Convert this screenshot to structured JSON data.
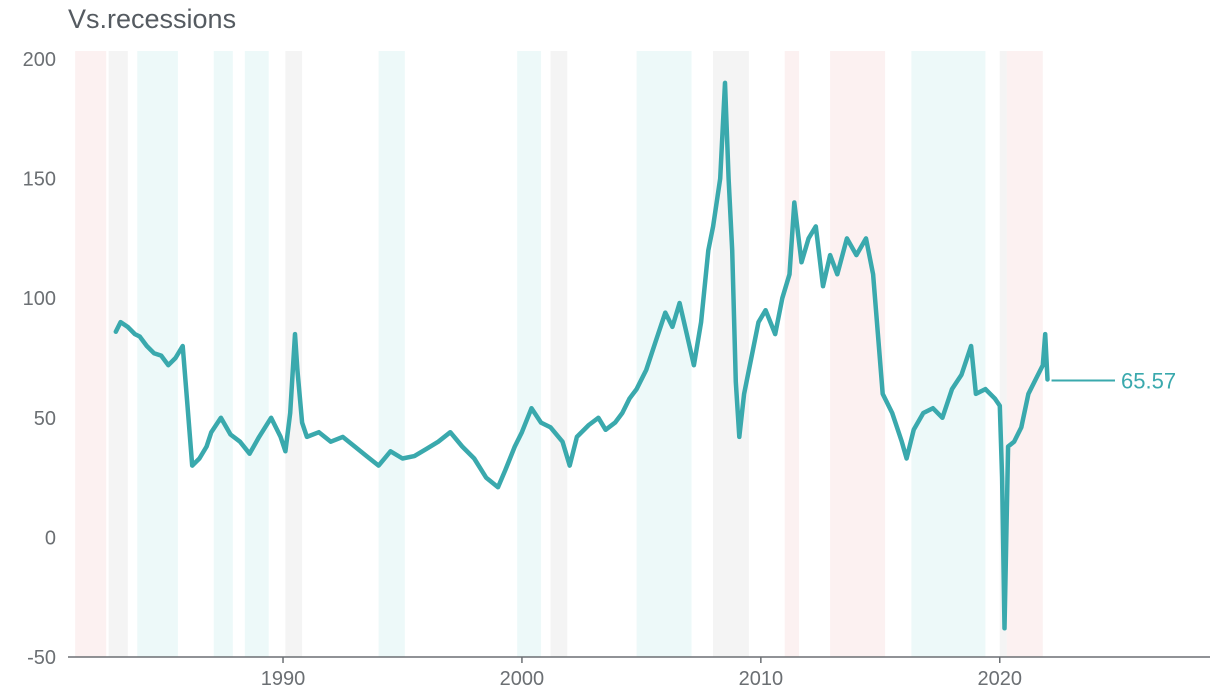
{
  "chart_data": {
    "type": "line",
    "title": "Vs.recessions",
    "xlabel": "",
    "ylabel": "",
    "xlim": [
      1981.0,
      2028.8
    ],
    "ylim": [
      -50,
      200
    ],
    "xticks": [
      1990,
      2000,
      2010,
      2020
    ],
    "yticks": [
      -50,
      0,
      50,
      100,
      150,
      200
    ],
    "grid": false,
    "line_color": "#3aa9ad",
    "end_value_label": "65.57",
    "series": [
      {
        "points": [
          [
            1983.0,
            86
          ],
          [
            1983.2,
            90
          ],
          [
            1983.5,
            88
          ],
          [
            1983.8,
            85
          ],
          [
            1984.0,
            84
          ],
          [
            1984.3,
            80
          ],
          [
            1984.6,
            77
          ],
          [
            1984.9,
            76
          ],
          [
            1985.2,
            72
          ],
          [
            1985.5,
            75
          ],
          [
            1985.8,
            80
          ],
          [
            1986.0,
            55
          ],
          [
            1986.2,
            30
          ],
          [
            1986.5,
            33
          ],
          [
            1986.8,
            38
          ],
          [
            1987.0,
            44
          ],
          [
            1987.4,
            50
          ],
          [
            1987.8,
            43
          ],
          [
            1988.2,
            40
          ],
          [
            1988.6,
            35
          ],
          [
            1989.0,
            42
          ],
          [
            1989.5,
            50
          ],
          [
            1989.9,
            42
          ],
          [
            1990.1,
            36
          ],
          [
            1990.3,
            52
          ],
          [
            1990.5,
            85
          ],
          [
            1990.6,
            70
          ],
          [
            1990.8,
            48
          ],
          [
            1991.0,
            42
          ],
          [
            1991.5,
            44
          ],
          [
            1992.0,
            40
          ],
          [
            1992.5,
            42
          ],
          [
            1993.0,
            38
          ],
          [
            1993.5,
            34
          ],
          [
            1994.0,
            30
          ],
          [
            1994.5,
            36
          ],
          [
            1995.0,
            33
          ],
          [
            1995.5,
            34
          ],
          [
            1996.0,
            37
          ],
          [
            1996.5,
            40
          ],
          [
            1997.0,
            44
          ],
          [
            1997.5,
            38
          ],
          [
            1998.0,
            33
          ],
          [
            1998.5,
            25
          ],
          [
            1999.0,
            21
          ],
          [
            1999.3,
            28
          ],
          [
            1999.7,
            38
          ],
          [
            2000.0,
            44
          ],
          [
            2000.4,
            54
          ],
          [
            2000.8,
            48
          ],
          [
            2001.2,
            46
          ],
          [
            2001.7,
            40
          ],
          [
            2002.0,
            30
          ],
          [
            2002.3,
            42
          ],
          [
            2002.8,
            47
          ],
          [
            2003.2,
            50
          ],
          [
            2003.5,
            45
          ],
          [
            2003.9,
            48
          ],
          [
            2004.2,
            52
          ],
          [
            2004.5,
            58
          ],
          [
            2004.8,
            62
          ],
          [
            2005.2,
            70
          ],
          [
            2005.6,
            82
          ],
          [
            2006.0,
            94
          ],
          [
            2006.3,
            88
          ],
          [
            2006.6,
            98
          ],
          [
            2006.9,
            85
          ],
          [
            2007.2,
            72
          ],
          [
            2007.5,
            90
          ],
          [
            2007.8,
            120
          ],
          [
            2008.0,
            130
          ],
          [
            2008.3,
            150
          ],
          [
            2008.5,
            190
          ],
          [
            2008.65,
            150
          ],
          [
            2008.8,
            120
          ],
          [
            2008.95,
            65
          ],
          [
            2009.1,
            42
          ],
          [
            2009.3,
            60
          ],
          [
            2009.6,
            75
          ],
          [
            2009.9,
            90
          ],
          [
            2010.2,
            95
          ],
          [
            2010.6,
            85
          ],
          [
            2010.9,
            100
          ],
          [
            2011.2,
            110
          ],
          [
            2011.4,
            140
          ],
          [
            2011.7,
            115
          ],
          [
            2012.0,
            125
          ],
          [
            2012.3,
            130
          ],
          [
            2012.6,
            105
          ],
          [
            2012.9,
            118
          ],
          [
            2013.2,
            110
          ],
          [
            2013.6,
            125
          ],
          [
            2014.0,
            118
          ],
          [
            2014.4,
            125
          ],
          [
            2014.7,
            110
          ],
          [
            2014.9,
            85
          ],
          [
            2015.1,
            60
          ],
          [
            2015.5,
            52
          ],
          [
            2015.9,
            40
          ],
          [
            2016.1,
            33
          ],
          [
            2016.4,
            45
          ],
          [
            2016.8,
            52
          ],
          [
            2017.2,
            54
          ],
          [
            2017.6,
            50
          ],
          [
            2018.0,
            62
          ],
          [
            2018.4,
            68
          ],
          [
            2018.8,
            80
          ],
          [
            2019.0,
            60
          ],
          [
            2019.4,
            62
          ],
          [
            2019.8,
            58
          ],
          [
            2020.0,
            55
          ],
          [
            2020.1,
            25
          ],
          [
            2020.2,
            -38
          ],
          [
            2020.35,
            38
          ],
          [
            2020.6,
            40
          ],
          [
            2020.9,
            46
          ],
          [
            2021.2,
            60
          ],
          [
            2021.5,
            66
          ],
          [
            2021.8,
            72
          ],
          [
            2021.9,
            85
          ],
          [
            2022.0,
            66
          ]
        ]
      }
    ],
    "recession_bands": [
      {
        "from": 1981.3,
        "to": 1982.6,
        "color": "#fbeeee"
      },
      {
        "from": 1982.7,
        "to": 1983.5,
        "color": "#f1f1f1"
      },
      {
        "from": 1983.9,
        "to": 1985.6,
        "color": "#e9f7f7"
      },
      {
        "from": 1987.1,
        "to": 1987.9,
        "color": "#e9f7f7"
      },
      {
        "from": 1988.4,
        "to": 1989.4,
        "color": "#e9f7f7"
      },
      {
        "from": 1990.1,
        "to": 1990.8,
        "color": "#f1f1f1"
      },
      {
        "from": 1994.0,
        "to": 1995.1,
        "color": "#e9f7f7"
      },
      {
        "from": 1999.8,
        "to": 2000.8,
        "color": "#e9f7f7"
      },
      {
        "from": 2001.2,
        "to": 2001.9,
        "color": "#f1f1f1"
      },
      {
        "from": 2004.8,
        "to": 2007.1,
        "color": "#e9f7f7"
      },
      {
        "from": 2008.0,
        "to": 2009.5,
        "color": "#f1f1f1"
      },
      {
        "from": 2011.0,
        "to": 2011.6,
        "color": "#fbeeee"
      },
      {
        "from": 2012.9,
        "to": 2015.2,
        "color": "#fbeeee"
      },
      {
        "from": 2016.3,
        "to": 2019.4,
        "color": "#e9f7f7"
      },
      {
        "from": 2020.0,
        "to": 2020.3,
        "color": "#f1f1f1"
      },
      {
        "from": 2020.3,
        "to": 2021.8,
        "color": "#fbeeee"
      }
    ]
  }
}
